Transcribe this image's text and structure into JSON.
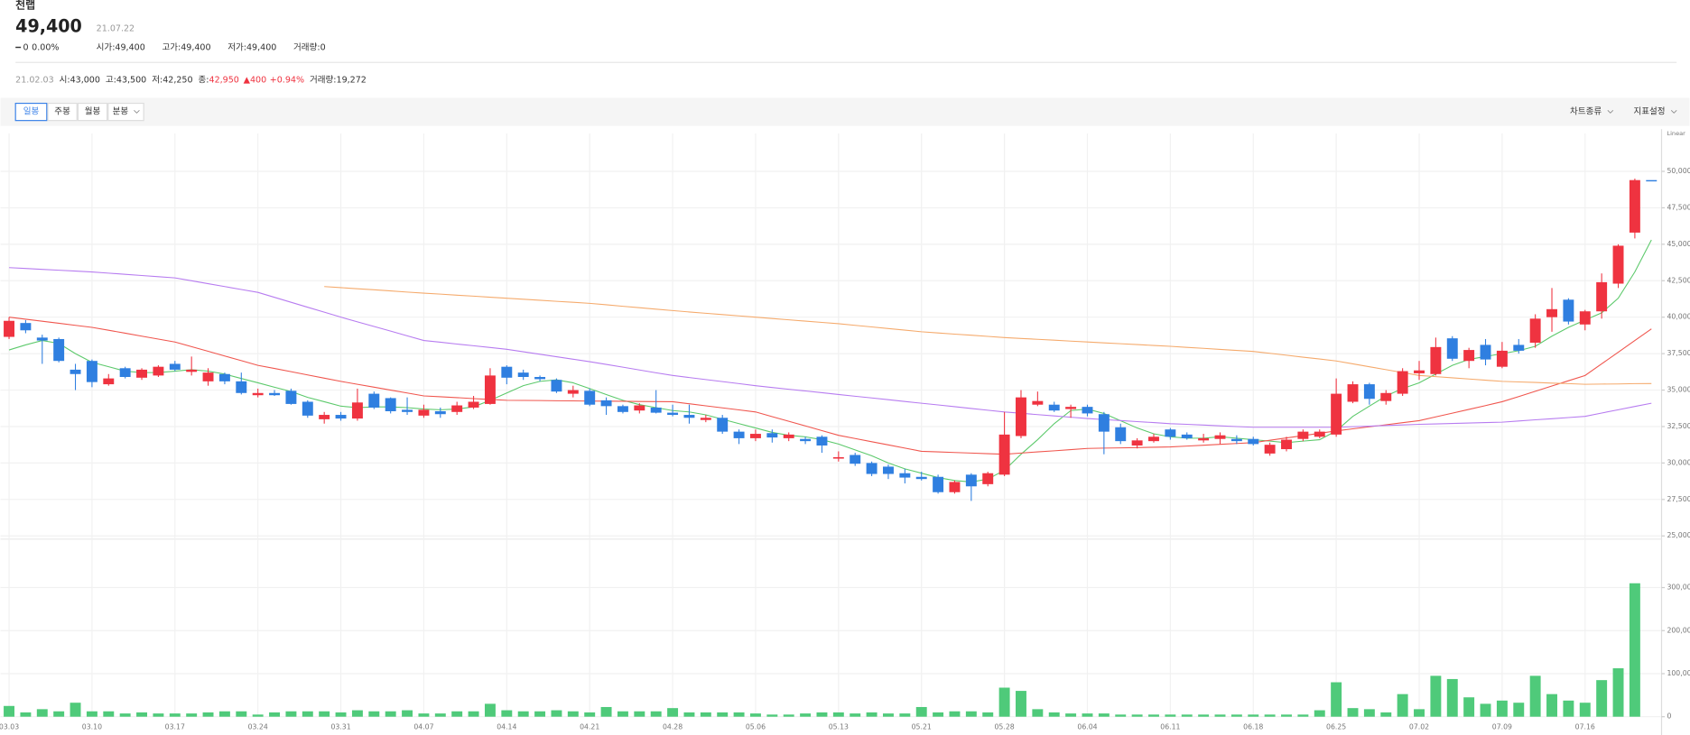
{
  "header": {
    "name": "천랩",
    "price": "49,400",
    "date": "21.07.22",
    "change": "0",
    "change_rate": "0.00%",
    "stats": [
      {
        "label": "시가:",
        "value": "49,400"
      },
      {
        "label": "고가:",
        "value": "49,400"
      },
      {
        "label": "저가:",
        "value": "49,400"
      },
      {
        "label": "거래량:",
        "value": "0"
      }
    ]
  },
  "info": {
    "date": "21.02.03",
    "items": [
      {
        "label": "시:",
        "value": "43,000"
      },
      {
        "label": "고:",
        "value": "43,500"
      },
      {
        "label": "저:",
        "value": "42,250"
      },
      {
        "label": "종:",
        "value": "42,950"
      }
    ],
    "change": "▲400",
    "change_rate": "+0.94%",
    "volume_label": "거래량:",
    "volume": "19,272"
  },
  "toolbar": {
    "periods": [
      "일봉",
      "주봉",
      "월봉",
      "분봉"
    ],
    "selected": 0,
    "menus": [
      "차트종류",
      "지표설정"
    ]
  },
  "chart_data": [
    {
      "type": "candlestick",
      "scale_label": "Linear",
      "up_color": "#ef3340",
      "down_color": "#2f7fe0",
      "grid": true,
      "ylim": [
        25000,
        52600
      ],
      "yticks": [
        {
          "value": 25000,
          "label": "25,000"
        },
        {
          "value": 27500,
          "label": "27,500"
        },
        {
          "value": 30000,
          "label": "30,000"
        },
        {
          "value": 32500,
          "label": "32,500"
        },
        {
          "value": 35000,
          "label": "35,000"
        },
        {
          "value": 37500,
          "label": "37,500"
        },
        {
          "value": 40000,
          "label": "40,000"
        },
        {
          "value": 42500,
          "label": "42,500"
        },
        {
          "value": 45000,
          "label": "45,000"
        },
        {
          "value": 47500,
          "label": "47,500"
        },
        {
          "value": 50000,
          "label": "50,000"
        }
      ],
      "open": [
        38650,
        39600,
        38600,
        38500,
        36400,
        37000,
        35400,
        36500,
        35850,
        36000,
        36800,
        36250,
        35600,
        36100,
        35600,
        34650,
        34800,
        34950,
        34200,
        33000,
        33300,
        33050,
        34750,
        34450,
        33650,
        33250,
        33550,
        33500,
        33800,
        34050,
        36600,
        36200,
        35900,
        35700,
        34750,
        34950,
        34300,
        33900,
        33600,
        33800,
        33450,
        33300,
        32950,
        33100,
        32150,
        31700,
        32050,
        31700,
        31650,
        31800,
        30300,
        30550,
        30000,
        29750,
        29300,
        29050,
        29050,
        28000,
        29200,
        28550,
        29200,
        31850,
        34000,
        34000,
        33700,
        33850,
        33350,
        32450,
        31200,
        31500,
        32300,
        31950,
        31550,
        31650,
        31650,
        31650,
        30650,
        30950,
        31650,
        31800,
        31950,
        34200,
        35400,
        34250,
        34750,
        36150,
        36100,
        38550,
        37000,
        38100,
        36600,
        38100,
        38250,
        40000,
        41200,
        39500,
        40400,
        42300,
        45800,
        49400
      ],
      "high": [
        40000,
        39800,
        38800,
        38600,
        36800,
        37100,
        36100,
        36600,
        36500,
        36700,
        37000,
        37300,
        36500,
        36200,
        36200,
        35100,
        35000,
        35100,
        34300,
        33500,
        33500,
        35100,
        34900,
        34500,
        34500,
        34000,
        33800,
        34200,
        34600,
        36500,
        36700,
        36400,
        36000,
        35800,
        35300,
        35100,
        34500,
        34000,
        34100,
        35000,
        34000,
        34000,
        33300,
        33300,
        32300,
        32300,
        32300,
        32100,
        31800,
        31900,
        30800,
        30700,
        30100,
        29900,
        29600,
        29400,
        29200,
        28800,
        29300,
        29400,
        33500,
        35000,
        34900,
        34200,
        34000,
        34000,
        33500,
        32700,
        31700,
        32000,
        32400,
        32100,
        32000,
        32100,
        31900,
        31800,
        31400,
        31800,
        32300,
        32300,
        35800,
        35600,
        35500,
        35000,
        36500,
        37000,
        38600,
        38700,
        37900,
        38500,
        38300,
        38500,
        40200,
        42000,
        41300,
        40500,
        43000,
        45000,
        49500,
        49400
      ],
      "low": [
        38500,
        38900,
        36800,
        36900,
        35000,
        35200,
        35300,
        35800,
        35700,
        35900,
        36300,
        36000,
        35300,
        35400,
        34700,
        34500,
        34600,
        34000,
        33100,
        32700,
        32900,
        32900,
        33700,
        33400,
        33300,
        33100,
        33100,
        33300,
        33700,
        34000,
        35400,
        35700,
        35600,
        34800,
        34500,
        33900,
        33300,
        33400,
        33400,
        33400,
        33200,
        32700,
        32800,
        32000,
        31300,
        31500,
        31400,
        31500,
        31300,
        30700,
        30100,
        29800,
        29100,
        28900,
        28600,
        28800,
        27900,
        27900,
        27400,
        28400,
        29100,
        31700,
        33900,
        33500,
        33100,
        33200,
        30600,
        31300,
        31000,
        31400,
        31600,
        31600,
        31400,
        31300,
        31300,
        31200,
        30500,
        30800,
        31500,
        31700,
        31800,
        34100,
        34000,
        34000,
        34600,
        35700,
        36000,
        37000,
        36500,
        36700,
        36500,
        37500,
        37900,
        39000,
        39500,
        39100,
        39900,
        42000,
        45400,
        49400
      ],
      "close": [
        39750,
        39100,
        38400,
        37000,
        36100,
        35550,
        35800,
        35900,
        36400,
        36600,
        36400,
        36400,
        36200,
        35600,
        34800,
        34800,
        34650,
        34050,
        33250,
        33300,
        33050,
        34150,
        33800,
        33550,
        33500,
        33650,
        33350,
        33950,
        34200,
        36000,
        35850,
        35900,
        35750,
        34900,
        35000,
        34000,
        33900,
        33500,
        33950,
        33450,
        33300,
        33100,
        33100,
        32150,
        31700,
        32000,
        31750,
        31950,
        31500,
        31200,
        30400,
        29950,
        29250,
        29250,
        29000,
        28900,
        28000,
        28700,
        28400,
        29300,
        31950,
        34500,
        34250,
        33600,
        33850,
        33400,
        32150,
        31500,
        31550,
        31800,
        31800,
        31700,
        31700,
        31900,
        31500,
        31300,
        31250,
        31600,
        32150,
        32150,
        34750,
        35400,
        34400,
        34800,
        36300,
        36350,
        37950,
        37150,
        37750,
        37100,
        37700,
        37700,
        39900,
        40550,
        39700,
        40400,
        42400,
        44900,
        49400,
        49400
      ],
      "lines": [
        {
          "color": "#5cc96b",
          "values": [
            37750,
            38100,
            38400,
            38200,
            37500,
            36900,
            36600,
            36300,
            36200,
            36200,
            36300,
            36400,
            36300,
            36100,
            35800,
            35500,
            35200,
            34900,
            34500,
            34200,
            33900,
            33800,
            33850,
            33850,
            33800,
            33700,
            33650,
            33700,
            33850,
            34300,
            34800,
            35300,
            35600,
            35700,
            35500,
            35100,
            34700,
            34300,
            34000,
            33800,
            33600,
            33500,
            33300,
            33000,
            32700,
            32400,
            32100,
            31900,
            31800,
            31600,
            31300,
            30900,
            30500,
            30000,
            29600,
            29300,
            29000,
            28800,
            28700,
            28900,
            29500,
            30600,
            31600,
            32700,
            33600,
            33700,
            33400,
            32900,
            32400,
            32000,
            31800,
            31700,
            31700,
            31800,
            31700,
            31600,
            31500,
            31400,
            31500,
            31600,
            32200,
            33200,
            33900,
            34600,
            35100,
            35500,
            36100,
            36700,
            37100,
            37300,
            37500,
            37700,
            38000,
            38700,
            39300,
            39800,
            40300,
            41300,
            43100,
            45300
          ]
        },
        {
          "color": "#f0564e",
          "values": [
            40000,
            39860,
            39720,
            39580,
            39440,
            39300,
            39100,
            38900,
            38700,
            38500,
            38300,
            37980,
            37660,
            37340,
            37020,
            36700,
            36480,
            36260,
            36040,
            35820,
            35600,
            35400,
            35200,
            35000,
            34800,
            34600,
            34540,
            34480,
            34420,
            34360,
            34300,
            34290,
            34280,
            34270,
            34260,
            34250,
            34240,
            34230,
            34220,
            34210,
            34200,
            34060,
            33920,
            33780,
            33640,
            33500,
            33180,
            32860,
            32540,
            32220,
            31900,
            31680,
            31460,
            31240,
            31020,
            30800,
            30760,
            30720,
            30680,
            30640,
            30600,
            30680,
            30760,
            30840,
            30920,
            31000,
            31020,
            31040,
            31060,
            31080,
            31100,
            31160,
            31220,
            31280,
            31340,
            31400,
            31560,
            31720,
            31880,
            32040,
            32200,
            32340,
            32480,
            32620,
            32760,
            32900,
            33160,
            33420,
            33680,
            33940,
            34200,
            34560,
            34920,
            35280,
            35640,
            36000,
            36800,
            37600,
            38400,
            39200
          ]
        },
        {
          "color": "#b77cf0",
          "values": [
            43400,
            43340,
            43280,
            43220,
            43160,
            43100,
            43020,
            42940,
            42860,
            42780,
            42700,
            42500,
            42300,
            42100,
            41900,
            41700,
            41360,
            41020,
            40680,
            40340,
            40000,
            39680,
            39360,
            39040,
            38720,
            38400,
            38280,
            38160,
            38040,
            37920,
            37800,
            37630,
            37460,
            37290,
            37120,
            36950,
            36760,
            36570,
            36380,
            36190,
            36000,
            35860,
            35720,
            35580,
            35440,
            35300,
            35180,
            35060,
            34940,
            34820,
            34700,
            34580,
            34460,
            34340,
            34220,
            34100,
            33980,
            33860,
            33740,
            33620,
            33500,
            33410,
            33320,
            33230,
            33140,
            33050,
            32980,
            32910,
            32840,
            32770,
            32700,
            32650,
            32600,
            32550,
            32500,
            32450,
            32450,
            32450,
            32450,
            32450,
            32450,
            32490,
            32530,
            32570,
            32610,
            32650,
            32680,
            32710,
            32740,
            32770,
            32800,
            32880,
            32960,
            33040,
            33120,
            33200,
            33430,
            33650,
            33880,
            34100
          ]
        },
        {
          "color": "#f5aa6c",
          "values": [
            null,
            null,
            null,
            null,
            null,
            null,
            null,
            null,
            null,
            null,
            null,
            null,
            null,
            null,
            null,
            null,
            null,
            null,
            null,
            42100,
            42025,
            41950,
            41875,
            41800,
            41725,
            41650,
            41580,
            41510,
            41440,
            41370,
            41300,
            41230,
            41160,
            41090,
            41020,
            40950,
            40850,
            40750,
            40650,
            40550,
            40450,
            40360,
            40270,
            40180,
            40090,
            40000,
            39910,
            39820,
            39730,
            39640,
            39550,
            39440,
            39330,
            39220,
            39110,
            39000,
            38920,
            38840,
            38760,
            38680,
            38600,
            38540,
            38480,
            38420,
            38360,
            38300,
            38240,
            38180,
            38120,
            38060,
            38000,
            37930,
            37860,
            37790,
            37720,
            37650,
            37520,
            37390,
            37260,
            37130,
            37000,
            36800,
            36600,
            36400,
            36200,
            36000,
            35920,
            35840,
            35760,
            35680,
            35600,
            35560,
            35520,
            35480,
            35440,
            35400,
            35410,
            35420,
            35440,
            35450
          ]
        }
      ]
    },
    {
      "type": "bar",
      "color": "#4fca7a",
      "grid": true,
      "ylim": [
        0,
        402500
      ],
      "yticks": [
        0,
        {
          "value": 100000,
          "label": "100,000"
        },
        {
          "value": 200000,
          "label": "200,000"
        },
        {
          "value": 300000,
          "label": "300,000"
        }
      ],
      "categories": [
        "03.03",
        null,
        null,
        null,
        null,
        "03.10",
        null,
        null,
        null,
        null,
        "03.17",
        null,
        null,
        null,
        null,
        "03.24",
        null,
        null,
        null,
        null,
        "03.31",
        null,
        null,
        null,
        null,
        "04.07",
        null,
        null,
        null,
        null,
        "04.14",
        null,
        null,
        null,
        null,
        "04.21",
        null,
        null,
        null,
        null,
        "04.28",
        null,
        null,
        null,
        null,
        "05.06",
        null,
        null,
        null,
        null,
        "05.13",
        null,
        null,
        null,
        null,
        "05.21",
        null,
        null,
        null,
        null,
        "05.28",
        null,
        null,
        null,
        null,
        "06.04",
        null,
        null,
        null,
        null,
        "06.11",
        null,
        null,
        null,
        null,
        "06.18",
        null,
        null,
        null,
        null,
        "06.25",
        null,
        null,
        null,
        null,
        "07.02",
        null,
        null,
        null,
        null,
        "07.09",
        null,
        null,
        null,
        null,
        "07.16",
        null,
        null,
        null,
        null
      ],
      "values": [
        25000,
        10000,
        17500,
        12500,
        32500,
        12500,
        12500,
        7500,
        10000,
        7500,
        7500,
        7500,
        10000,
        12500,
        12500,
        5000,
        10000,
        12500,
        12500,
        12500,
        10000,
        15000,
        12500,
        12500,
        15000,
        7500,
        7500,
        12500,
        12500,
        30000,
        15000,
        12500,
        12500,
        15000,
        12500,
        10000,
        22500,
        12500,
        12500,
        12500,
        20000,
        10000,
        10000,
        10000,
        10000,
        7500,
        5000,
        5000,
        7500,
        10000,
        10000,
        7500,
        10000,
        7500,
        7500,
        22500,
        10000,
        12500,
        12500,
        10000,
        67500,
        60000,
        17500,
        10000,
        7500,
        7500,
        7500,
        5000,
        5000,
        5000,
        5000,
        5000,
        5000,
        5000,
        5000,
        5000,
        5000,
        5000,
        5000,
        15000,
        80000,
        20000,
        17500,
        10000,
        52500,
        17500,
        95000,
        87500,
        45000,
        30000,
        37500,
        32500,
        95000,
        52500,
        37500,
        32500,
        85000,
        112500,
        310000,
        0
      ]
    }
  ]
}
